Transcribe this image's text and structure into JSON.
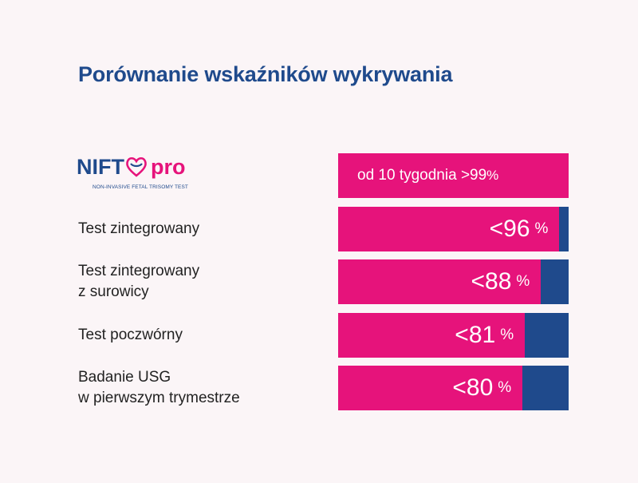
{
  "title": "Porównanie wskaźników wykrywania",
  "logo": {
    "name_part1": "NIFT",
    "name_part2": "pro",
    "subtitle": "NON-INVASIVE FETAL TRISOMY TEST"
  },
  "colors": {
    "accent_pink": "#e6137b",
    "accent_blue": "#1f4a8c",
    "background": "#fbf5f7"
  },
  "chart_data": {
    "type": "bar",
    "orientation": "horizontal",
    "title": "Porównanie wskaźników wykrywania",
    "categories": [
      "NIFTY pro",
      "Test zintegrowany",
      "Test zintegrowany z surowicy",
      "Test poczwórny",
      "Badanie USG w pierwszym trymestrze"
    ],
    "values": [
      99,
      96,
      88,
      81,
      80
    ],
    "unit": "%",
    "xlim": [
      0,
      100
    ],
    "grid": false,
    "bars": [
      {
        "label_lines": [],
        "text_main": "od 10 tygodnia >99",
        "text_pct": "%",
        "value": 99
      },
      {
        "label_lines": [
          "Test zintegrowany"
        ],
        "text_main": "<96",
        "text_pct": "%",
        "value": 96
      },
      {
        "label_lines": [
          "Test zintegrowany",
          "z surowicy"
        ],
        "text_main": "<88",
        "text_pct": "%",
        "value": 88
      },
      {
        "label_lines": [
          "Test poczwórny"
        ],
        "text_main": "<81",
        "text_pct": "%",
        "value": 81
      },
      {
        "label_lines": [
          "Badanie USG",
          "w pierwszym trymestrze"
        ],
        "text_main": "<80",
        "text_pct": "%",
        "value": 80
      }
    ]
  }
}
